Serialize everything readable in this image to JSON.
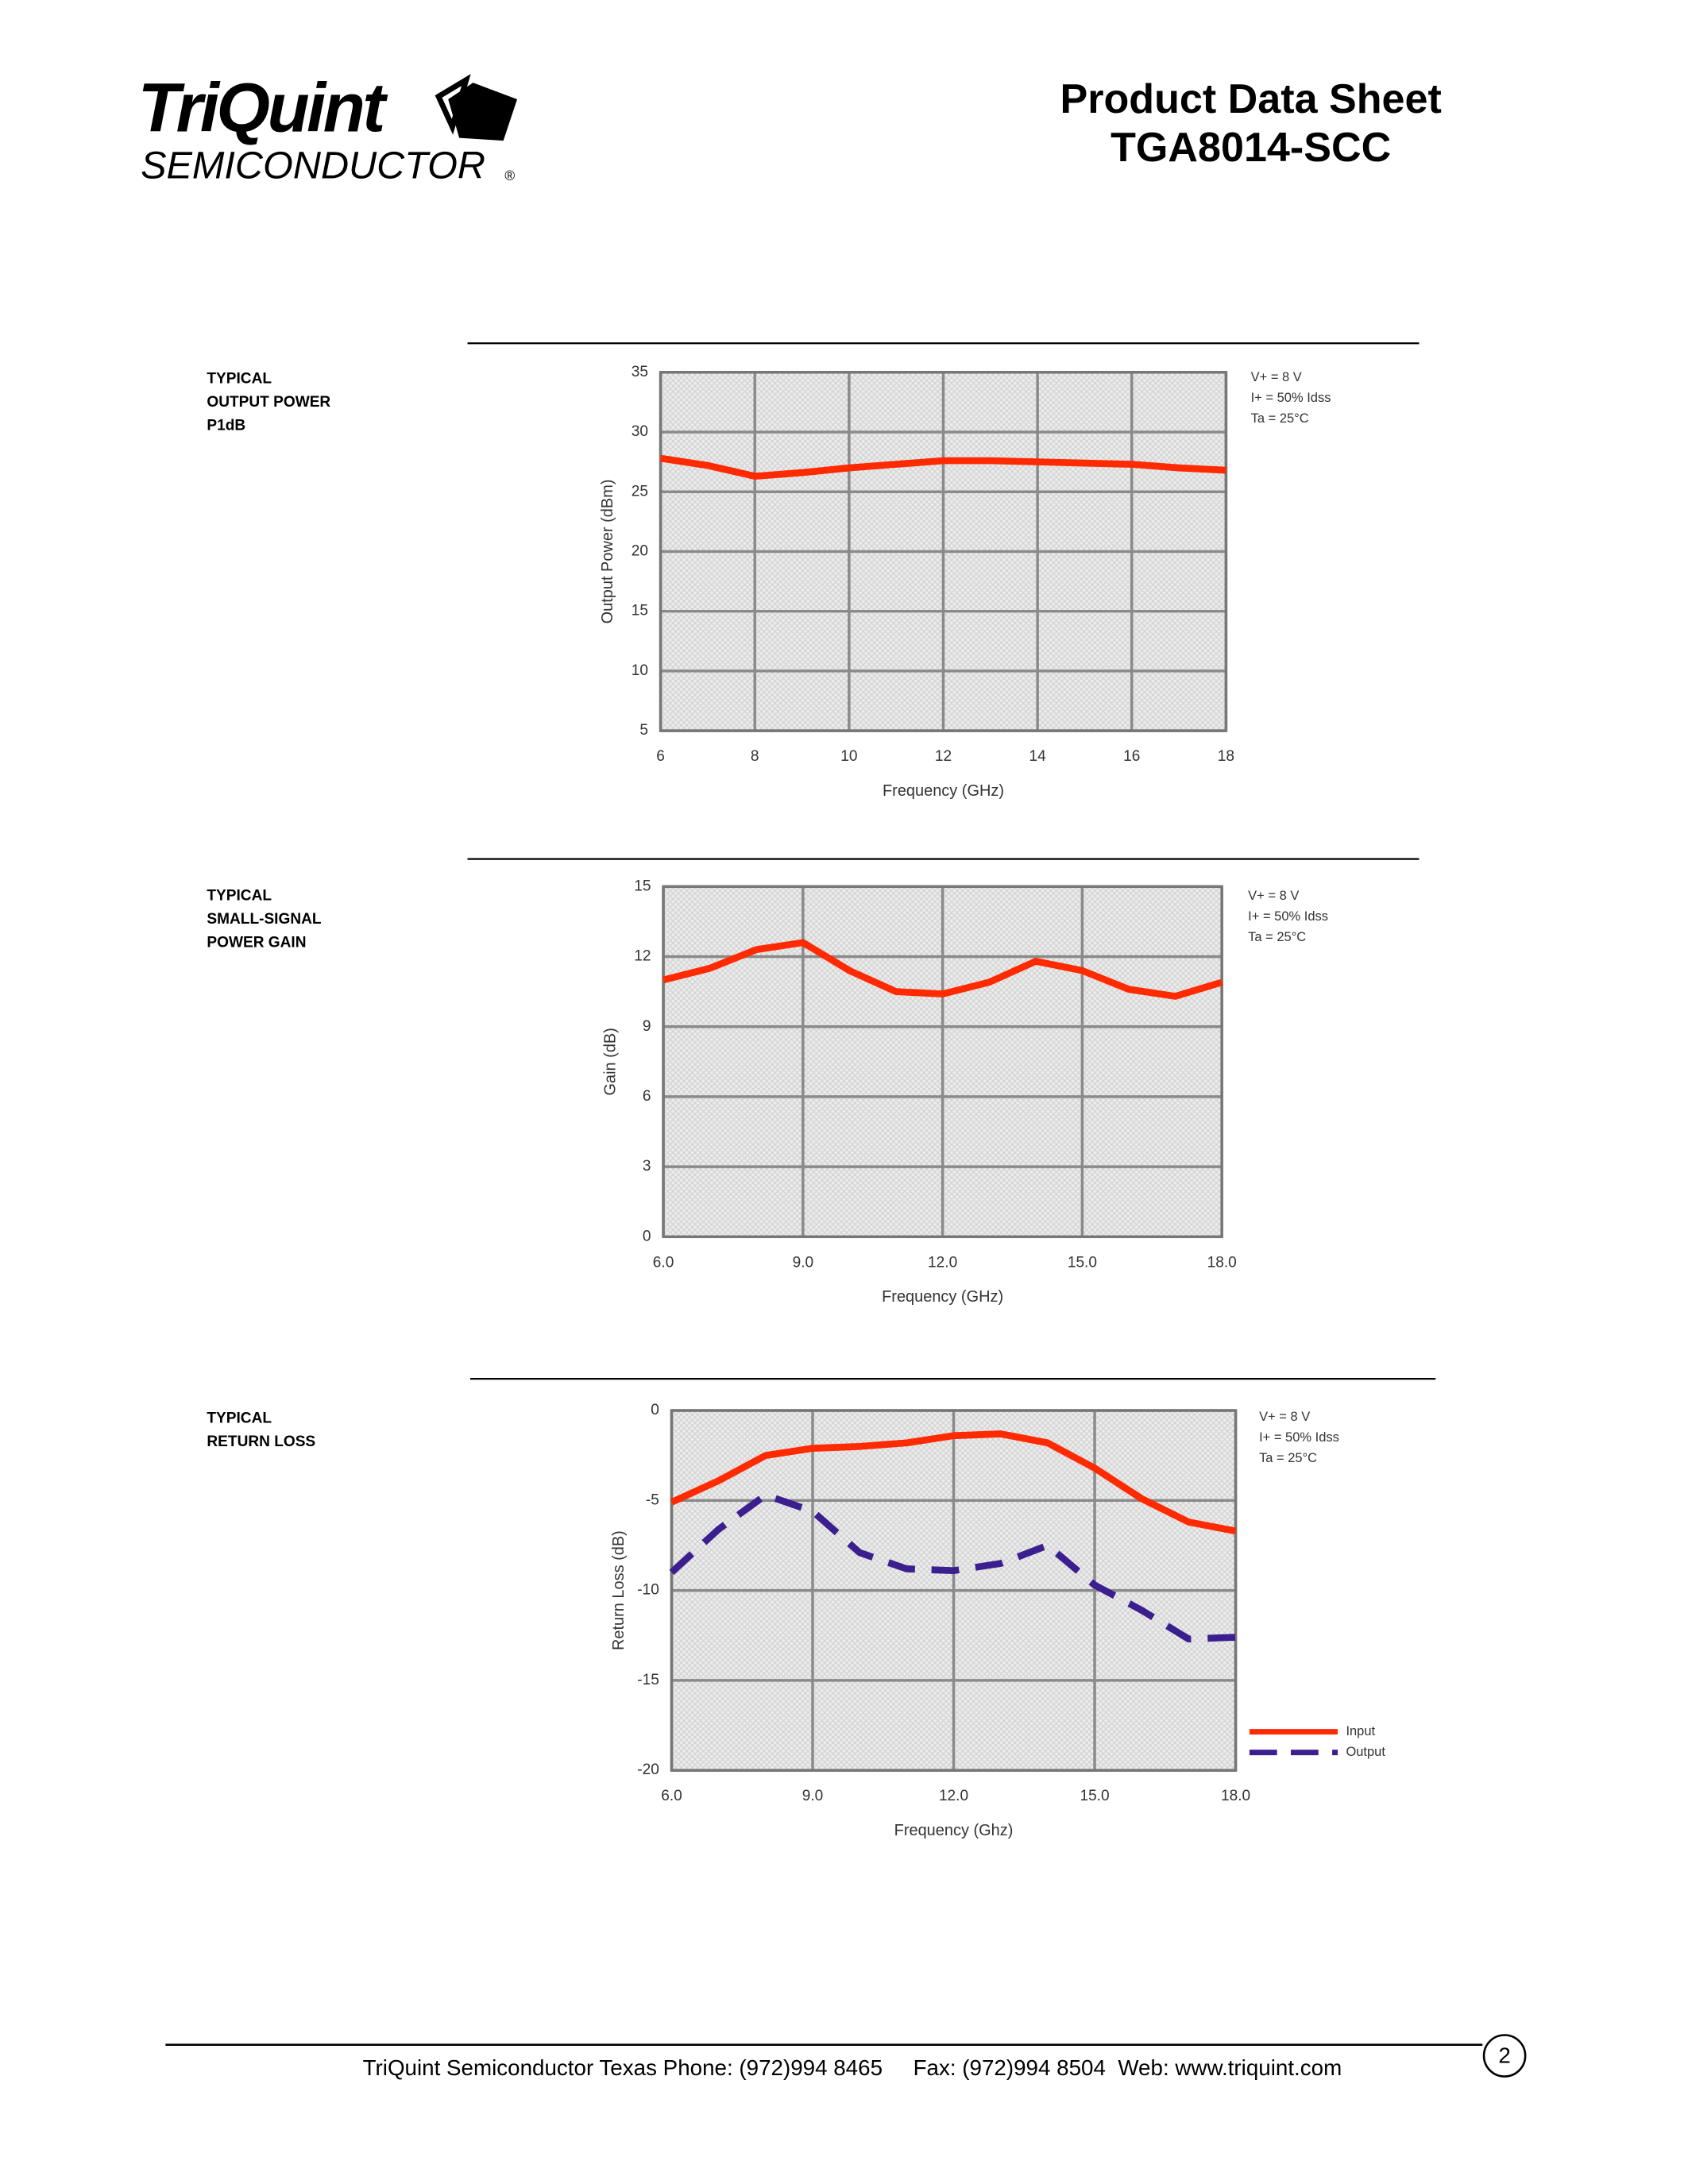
{
  "header": {
    "logo": "TriQuint",
    "logo_sub": "SEMICONDUCTOR",
    "registered": "®",
    "title": "Product Data Sheet",
    "part": "TGA8014-SCC"
  },
  "chart_data": [
    {
      "type": "line",
      "caption": [
        "TYPICAL",
        "OUTPUT POWER",
        "P1dB"
      ],
      "conditions": [
        "V+ = 8 V",
        "I+ = 50% Idss",
        "Ta = 25°C"
      ],
      "x_label": "Frequency (GHz)",
      "y_label": "Output Power (dBm)",
      "x": [
        6,
        7,
        8,
        9,
        10,
        11,
        12,
        13,
        14,
        15,
        16,
        17,
        18
      ],
      "values": [
        27.8,
        27.2,
        26.3,
        26.6,
        27.0,
        27.3,
        27.6,
        27.6,
        27.5,
        27.4,
        27.3,
        27.0,
        26.8
      ],
      "color": "#ff2a00",
      "xlim": [
        6,
        18
      ],
      "xticks": [
        6,
        8,
        10,
        12,
        14,
        16,
        18
      ],
      "ylim": [
        5,
        35
      ],
      "yticks": [
        5,
        10,
        15,
        20,
        25,
        30,
        35
      ],
      "grid": true
    },
    {
      "type": "line",
      "caption": [
        "TYPICAL",
        "SMALL-SIGNAL",
        "POWER GAIN"
      ],
      "conditions": [
        "V+ = 8 V",
        "I+ = 50% Idss",
        "Ta = 25°C"
      ],
      "x_label": "Frequency (GHz)",
      "y_label": "Gain (dB)",
      "x": [
        6,
        7,
        8,
        9,
        10,
        11,
        12,
        13,
        14,
        15,
        16,
        17,
        18
      ],
      "values": [
        11.0,
        11.5,
        12.3,
        12.6,
        11.4,
        10.5,
        10.4,
        10.9,
        11.8,
        11.4,
        10.6,
        10.3,
        10.9
      ],
      "color": "#ff2a00",
      "xlim": [
        6,
        18
      ],
      "xticks": [
        {
          "value": 6,
          "label": "6.0"
        },
        {
          "value": 9,
          "label": "9.0"
        },
        {
          "value": 12,
          "label": "12.0"
        },
        {
          "value": 15,
          "label": "15.0"
        },
        {
          "value": 18,
          "label": "18.0"
        }
      ],
      "ylim": [
        0,
        15
      ],
      "yticks": [
        0,
        3,
        6,
        9,
        12,
        15
      ],
      "grid": true
    },
    {
      "type": "line",
      "caption": [
        "TYPICAL",
        "RETURN LOSS"
      ],
      "conditions": [
        "V+ = 8 V",
        "I+ = 50% Idss",
        "Ta = 25°C"
      ],
      "x_label": "Frequency (Ghz)",
      "y_label": "Return Loss (dB)",
      "x": [
        6,
        7,
        8,
        9,
        10,
        11,
        12,
        13,
        14,
        15,
        16,
        17,
        18
      ],
      "series": [
        {
          "name": "Input",
          "color": "#ff2a00",
          "style": "solid",
          "values": [
            -5.1,
            -3.9,
            -2.5,
            -2.1,
            -2.0,
            -1.8,
            -1.4,
            -1.3,
            -1.8,
            -3.2,
            -4.9,
            -6.2,
            -6.7
          ]
        },
        {
          "name": "Output",
          "color": "#3b1f8f",
          "style": "dashed",
          "values": [
            -9.0,
            -6.6,
            -4.7,
            -5.6,
            -7.9,
            -8.8,
            -8.9,
            -8.5,
            -7.5,
            -9.7,
            -11.1,
            -12.7,
            -12.6
          ]
        }
      ],
      "legend": "lower right",
      "xlim": [
        6,
        18
      ],
      "xticks": [
        {
          "value": 6,
          "label": "6.0"
        },
        {
          "value": 9,
          "label": "9.0"
        },
        {
          "value": 12,
          "label": "12.0"
        },
        {
          "value": 15,
          "label": "15.0"
        },
        {
          "value": 18,
          "label": "18.0"
        }
      ],
      "ylim": [
        -20,
        0
      ],
      "yticks": [
        -20,
        -15,
        -10,
        -5,
        0
      ],
      "grid": true
    }
  ],
  "footer": {
    "text": "TriQuint Semiconductor Texas Phone: (972)994 8465     Fax: (972)994 8504  Web: www.triquint.com",
    "page": "2"
  }
}
